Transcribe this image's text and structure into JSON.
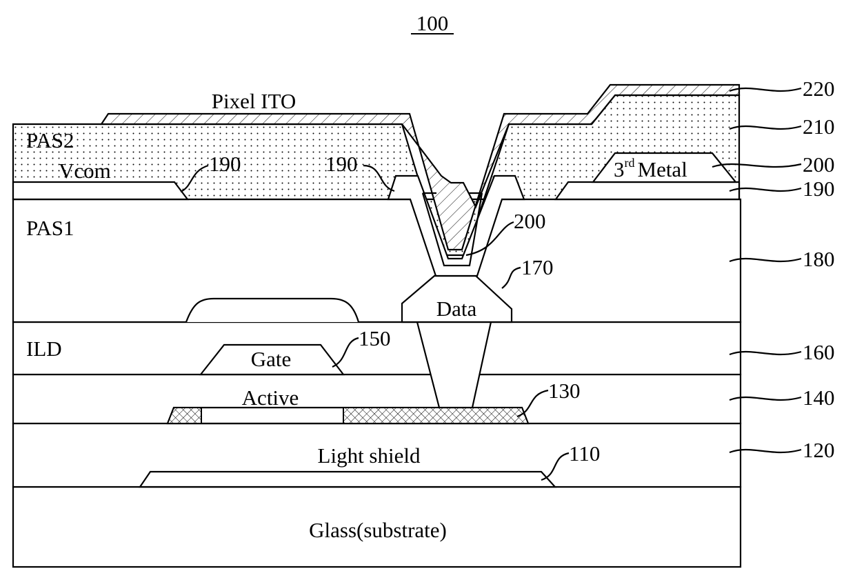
{
  "figure": {
    "number": "100",
    "colors": {
      "line": "#000000",
      "background": "#ffffff"
    }
  },
  "layers": {
    "pixel_ito": "Pixel ITO",
    "pas2": "PAS2",
    "vcom": "Vcom",
    "third_metal_base": "3",
    "third_metal_sup": "rd",
    "third_metal_rest": "Metal",
    "pas1": "PAS1",
    "data": "Data",
    "ild": "ILD",
    "gate": "Gate",
    "active": "Active",
    "light_shield": "Light shield",
    "glass": "Glass(substrate)"
  },
  "references": {
    "r220": "220",
    "r210": "210",
    "r200_right": "200",
    "r190_right": "190",
    "r180": "180",
    "r160": "160",
    "r140": "140",
    "r120": "120",
    "r190_left": "190",
    "r190_mid": "190",
    "r200_via": "200",
    "r170": "170",
    "r150": "150",
    "r130": "130",
    "r110": "110"
  }
}
